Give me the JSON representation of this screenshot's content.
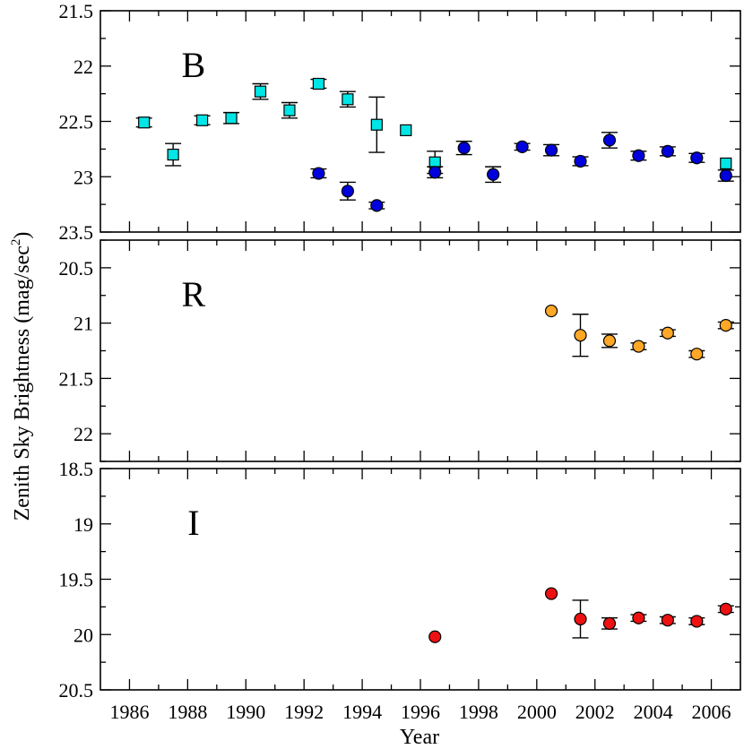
{
  "chart_data": {
    "type": "scatter",
    "ylabel": "Zenith Sky Brightness (mag/sec",
    "ylabel_sup": "2",
    "ylabel_close": ")",
    "xlabel": "Year",
    "xlim": [
      1985,
      2007
    ],
    "x_ticks": [
      "1986",
      "1988",
      "1990",
      "1992",
      "1994",
      "1996",
      "1998",
      "2000",
      "2002",
      "2004",
      "2006"
    ],
    "panels": [
      {
        "label": "B",
        "ylim": [
          21.5,
          23.5
        ],
        "y_ticks": [
          "21.5",
          "22",
          "22.5",
          "23",
          "23.5"
        ],
        "series": [
          {
            "name": "B-square",
            "marker": "square",
            "color": "#00e5e5",
            "points": [
              {
                "x": 1986.5,
                "y": 22.51,
                "err": 0.04
              },
              {
                "x": 1987.5,
                "y": 22.8,
                "err": 0.1
              },
              {
                "x": 1988.5,
                "y": 22.49,
                "err": 0.04
              },
              {
                "x": 1989.5,
                "y": 22.47,
                "err": 0.05
              },
              {
                "x": 1990.5,
                "y": 22.23,
                "err": 0.07
              },
              {
                "x": 1991.5,
                "y": 22.4,
                "err": 0.07
              },
              {
                "x": 1992.5,
                "y": 22.16,
                "err": 0.04
              },
              {
                "x": 1993.5,
                "y": 22.3,
                "err": 0.07
              },
              {
                "x": 1994.5,
                "y": 22.53,
                "err": 0.25
              },
              {
                "x": 1995.5,
                "y": 22.58,
                "err": 0
              },
              {
                "x": 1996.5,
                "y": 22.87,
                "err": 0.1
              },
              {
                "x": 2006.5,
                "y": 22.88,
                "err": 0
              }
            ]
          },
          {
            "name": "B-circle",
            "marker": "circle",
            "color": "#0000dd",
            "points": [
              {
                "x": 1992.5,
                "y": 22.97,
                "err": 0.04
              },
              {
                "x": 1993.5,
                "y": 23.13,
                "err": 0.08
              },
              {
                "x": 1994.5,
                "y": 23.26,
                "err": 0.03
              },
              {
                "x": 1996.5,
                "y": 22.96,
                "err": 0.05
              },
              {
                "x": 1997.5,
                "y": 22.74,
                "err": 0.06
              },
              {
                "x": 1998.5,
                "y": 22.98,
                "err": 0.07
              },
              {
                "x": 1999.5,
                "y": 22.73,
                "err": 0.03
              },
              {
                "x": 2000.5,
                "y": 22.76,
                "err": 0.05
              },
              {
                "x": 2001.5,
                "y": 22.86,
                "err": 0.04
              },
              {
                "x": 2002.5,
                "y": 22.67,
                "err": 0.07
              },
              {
                "x": 2003.5,
                "y": 22.81,
                "err": 0.04
              },
              {
                "x": 2004.5,
                "y": 22.77,
                "err": 0.04
              },
              {
                "x": 2005.5,
                "y": 22.83,
                "err": 0.04
              },
              {
                "x": 2006.5,
                "y": 22.99,
                "err": 0.05
              }
            ]
          }
        ]
      },
      {
        "label": "R",
        "ylim": [
          20.25,
          22.25
        ],
        "y_ticks": [
          "20.5",
          "21",
          "21.5",
          "22"
        ],
        "series": [
          {
            "name": "R-circle",
            "marker": "circle",
            "color": "#ffa726",
            "points": [
              {
                "x": 2000.5,
                "y": 20.89,
                "err": 0
              },
              {
                "x": 2001.5,
                "y": 21.11,
                "err": 0.19
              },
              {
                "x": 2002.5,
                "y": 21.16,
                "err": 0.06
              },
              {
                "x": 2003.5,
                "y": 21.21,
                "err": 0.03
              },
              {
                "x": 2004.5,
                "y": 21.09,
                "err": 0.03
              },
              {
                "x": 2005.5,
                "y": 21.28,
                "err": 0.03
              },
              {
                "x": 2006.5,
                "y": 21.02,
                "err": 0.03
              }
            ]
          }
        ]
      },
      {
        "label": "I",
        "ylim": [
          18.5,
          20.5
        ],
        "y_ticks": [
          "18.5",
          "19",
          "19.5",
          "20",
          "20.5"
        ],
        "series": [
          {
            "name": "I-circle",
            "marker": "circle",
            "color": "#ee1111",
            "points": [
              {
                "x": 1996.5,
                "y": 20.02,
                "err": 0
              },
              {
                "x": 2000.5,
                "y": 19.63,
                "err": 0
              },
              {
                "x": 2001.5,
                "y": 19.86,
                "err": 0.17
              },
              {
                "x": 2002.5,
                "y": 19.9,
                "err": 0.05
              },
              {
                "x": 2003.5,
                "y": 19.85,
                "err": 0.03
              },
              {
                "x": 2004.5,
                "y": 19.87,
                "err": 0.03
              },
              {
                "x": 2005.5,
                "y": 19.88,
                "err": 0.03
              },
              {
                "x": 2006.5,
                "y": 19.77,
                "err": 0.03
              }
            ]
          }
        ]
      }
    ]
  }
}
